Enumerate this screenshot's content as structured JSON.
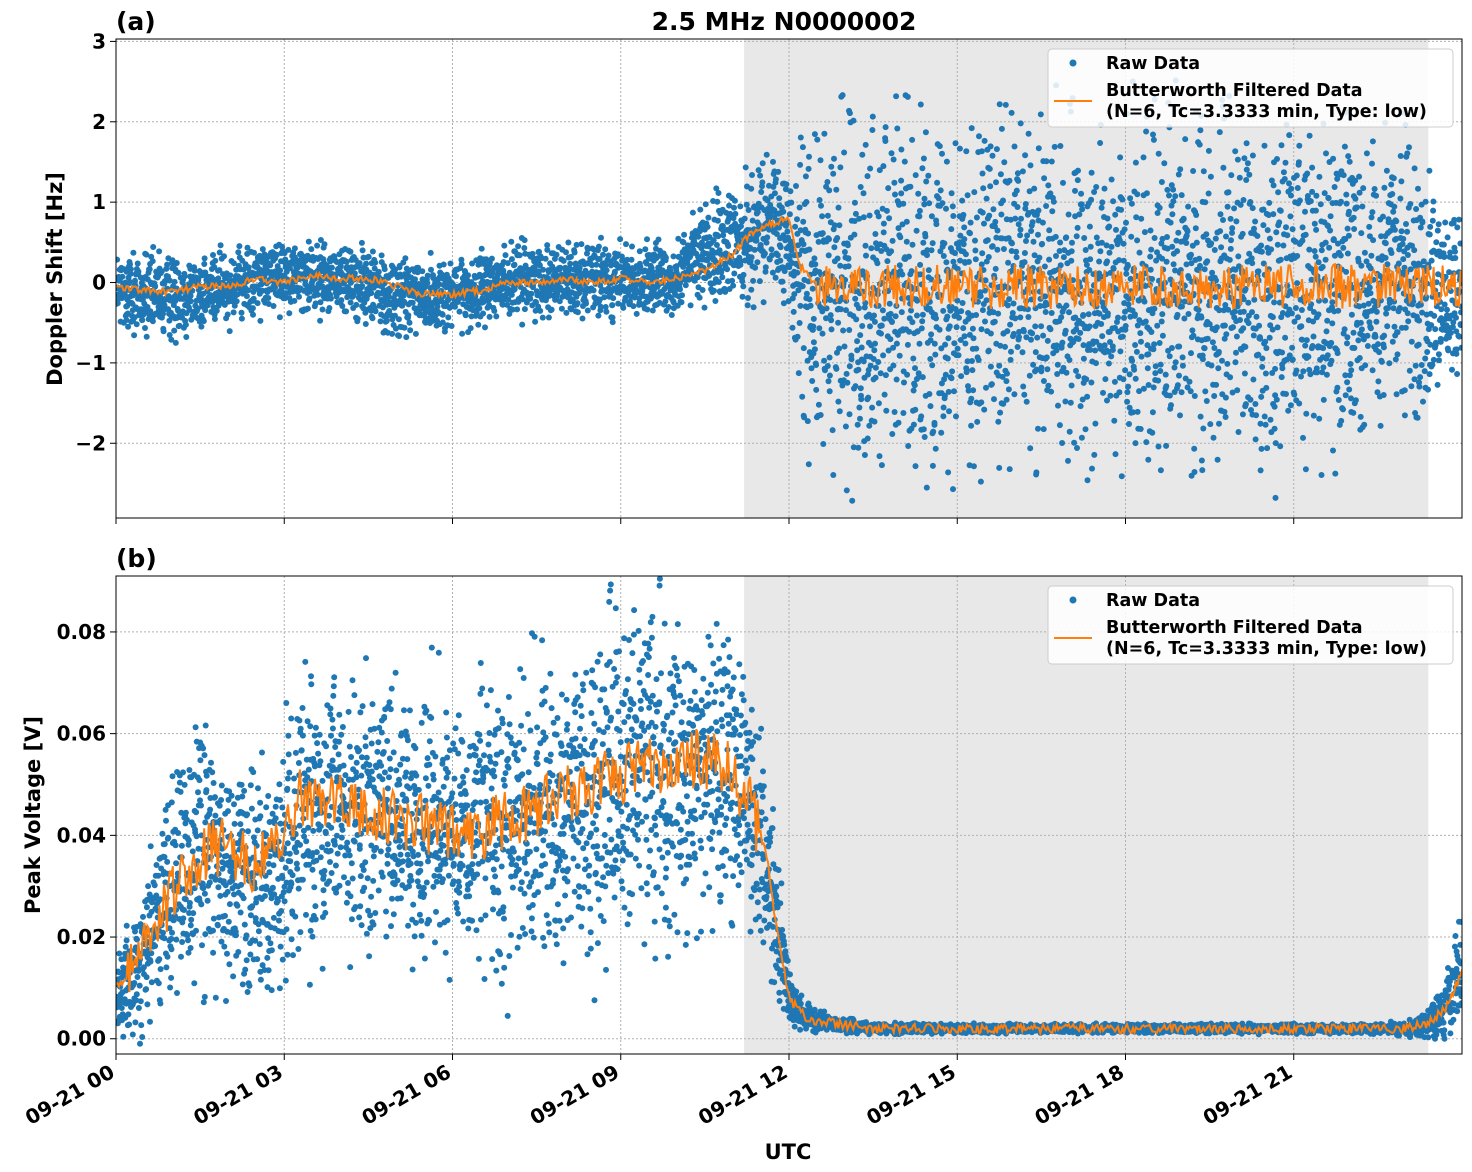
{
  "figure": {
    "title": "2.5 MHz N0000002",
    "xlabel": "UTC"
  },
  "colors": {
    "raw": "#1f77b4",
    "filtered": "#ff7f0e",
    "shade": "#e8e8e8",
    "grid": "#b0b0b0"
  },
  "x_tick_labels": [
    "09-21 00",
    "09-21 03",
    "09-21 06",
    "09-21 09",
    "09-21 12",
    "09-21 15",
    "09-21 18",
    "09-21 21"
  ],
  "shaded_interval_hours": [
    11.2,
    23.4
  ],
  "chart_data": [
    {
      "type": "scatter",
      "panel_label": "(a)",
      "ylabel": "Doppler Shift [Hz]",
      "xlim_hours": [
        0,
        24
      ],
      "ylim": [
        -2.93,
        3.03
      ],
      "yticks": [
        3,
        2,
        1,
        0,
        -1,
        -2
      ],
      "ytick_labels": [
        "3",
        "2",
        "1",
        "0",
        "−1",
        "−2"
      ],
      "grid": true,
      "legend_position": "top-right",
      "series": [
        {
          "name": "Raw Data",
          "style": "points",
          "x_hours": [
            0,
            1,
            2,
            3,
            4,
            5,
            6,
            7,
            8,
            9,
            10,
            10.5,
            11,
            11.5,
            12,
            12.3,
            13,
            15,
            18,
            21,
            23,
            24
          ],
          "center": [
            -0.1,
            -0.2,
            -0.05,
            0.1,
            0.05,
            -0.2,
            -0.15,
            0.0,
            0.05,
            0.0,
            0.05,
            0.4,
            0.45,
            0.7,
            0.6,
            -0.1,
            -0.1,
            -0.1,
            -0.1,
            -0.1,
            0.0,
            -0.3
          ],
          "spread": [
            0.35,
            0.35,
            0.3,
            0.3,
            0.3,
            0.35,
            0.3,
            0.3,
            0.3,
            0.3,
            0.3,
            0.45,
            0.5,
            0.55,
            0.6,
            1.3,
            1.45,
            1.45,
            1.45,
            1.45,
            1.2,
            0.6
          ]
        },
        {
          "name": "Butterworth Filtered Data\n(N=6, Tc=3.3333 min, Type: low)",
          "style": "line",
          "x_hours": [
            0,
            0.5,
            1,
            1.5,
            2,
            2.5,
            3,
            3.5,
            4,
            4.5,
            5,
            5.5,
            6,
            6.5,
            7,
            7.5,
            8,
            8.5,
            9,
            9.5,
            10,
            10.5,
            11,
            11.3,
            11.6,
            12,
            12.2,
            12.5,
            24
          ],
          "values": [
            -0.05,
            -0.1,
            -0.12,
            -0.05,
            -0.05,
            0.05,
            0.0,
            0.1,
            0.05,
            0.05,
            -0.05,
            -0.15,
            -0.15,
            -0.1,
            0.0,
            0.0,
            0.05,
            0.0,
            0.05,
            0.0,
            0.05,
            0.15,
            0.35,
            0.6,
            0.7,
            0.8,
            0.2,
            -0.05,
            -0.05
          ],
          "noise_after_hour": 12.5,
          "noise_amplitude": 0.28
        }
      ]
    },
    {
      "type": "scatter",
      "panel_label": "(b)",
      "ylabel": "Peak Voltage [V]",
      "xlim_hours": [
        0,
        24
      ],
      "ylim": [
        -0.003,
        0.091
      ],
      "yticks": [
        0.08,
        0.06,
        0.04,
        0.02,
        0.0
      ],
      "ytick_labels": [
        "0.08",
        "0.06",
        "0.04",
        "0.02",
        "0.00"
      ],
      "grid": true,
      "legend_position": "top-right",
      "series": [
        {
          "name": "Raw Data",
          "style": "points",
          "x_hours": [
            0,
            0.3,
            0.6,
            1,
            1.5,
            2,
            2.5,
            3,
            3.5,
            4,
            5,
            6,
            7,
            8,
            9,
            10,
            10.5,
            11,
            11.3,
            11.6,
            11.8,
            12,
            12.3,
            12.8,
            13.5,
            15,
            18,
            21,
            22,
            23,
            23.4,
            23.7,
            24
          ],
          "center": [
            0.008,
            0.012,
            0.02,
            0.03,
            0.035,
            0.035,
            0.03,
            0.035,
            0.045,
            0.045,
            0.042,
            0.04,
            0.042,
            0.045,
            0.05,
            0.05,
            0.055,
            0.052,
            0.045,
            0.035,
            0.02,
            0.008,
            0.004,
            0.003,
            0.002,
            0.002,
            0.002,
            0.002,
            0.002,
            0.002,
            0.003,
            0.006,
            0.014
          ],
          "spread": [
            0.006,
            0.008,
            0.012,
            0.014,
            0.016,
            0.016,
            0.016,
            0.018,
            0.018,
            0.018,
            0.018,
            0.019,
            0.02,
            0.021,
            0.022,
            0.022,
            0.022,
            0.02,
            0.018,
            0.014,
            0.01,
            0.004,
            0.002,
            0.001,
            0.0008,
            0.0006,
            0.0006,
            0.0006,
            0.0006,
            0.0008,
            0.002,
            0.004,
            0.008
          ]
        },
        {
          "name": "Butterworth Filtered Data\n(N=6, Tc=3.3333 min, Type: low)",
          "style": "line",
          "x_hours": [
            0,
            0.2,
            0.5,
            1,
            1.5,
            2,
            2.5,
            3,
            3.3,
            3.6,
            4,
            4.5,
            5,
            5.5,
            6,
            6.5,
            7,
            7.5,
            8,
            8.5,
            9,
            9.5,
            10,
            10.5,
            11,
            11.3,
            11.6,
            11.8,
            12,
            12.3,
            12.8,
            13.5,
            15,
            18,
            21,
            23,
            23.4,
            23.7,
            24
          ],
          "values": [
            0.01,
            0.012,
            0.017,
            0.028,
            0.036,
            0.038,
            0.034,
            0.038,
            0.048,
            0.046,
            0.047,
            0.044,
            0.043,
            0.042,
            0.04,
            0.041,
            0.043,
            0.045,
            0.048,
            0.05,
            0.052,
            0.053,
            0.055,
            0.055,
            0.052,
            0.046,
            0.036,
            0.02,
            0.008,
            0.004,
            0.003,
            0.002,
            0.002,
            0.002,
            0.002,
            0.002,
            0.003,
            0.006,
            0.013
          ],
          "noise_before_hour": 11.5,
          "noise_amplitude": 0.006
        }
      ]
    }
  ]
}
